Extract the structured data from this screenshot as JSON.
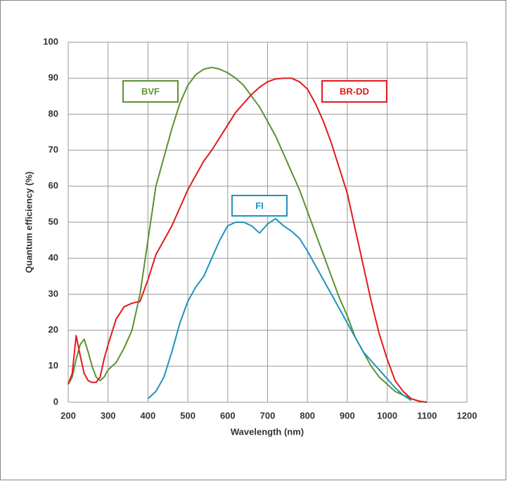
{
  "chart_data": {
    "type": "line",
    "x_label": "Wavelength (nm)",
    "y_label": "Quantum efficiency (%)",
    "x": [
      200,
      210,
      220,
      230,
      240,
      250,
      260,
      270,
      280,
      290,
      300,
      320,
      340,
      360,
      380,
      400,
      420,
      440,
      460,
      480,
      500,
      520,
      540,
      560,
      580,
      600,
      620,
      640,
      660,
      680,
      700,
      720,
      740,
      760,
      780,
      800,
      820,
      840,
      860,
      880,
      900,
      920,
      940,
      960,
      980,
      1000,
      1020,
      1040,
      1060,
      1080,
      1100
    ],
    "series": [
      {
        "name": "BVF",
        "color": "#5b9230",
        "values": [
          5,
          7,
          12,
          16,
          17.5,
          14,
          10,
          7,
          6,
          7,
          9,
          11,
          15,
          20,
          30,
          45,
          60,
          68,
          76,
          83,
          88,
          91,
          92.5,
          93,
          92.5,
          91.5,
          90,
          88,
          85,
          82,
          78,
          74,
          69,
          64,
          59,
          53,
          47,
          41,
          35,
          29,
          24,
          18,
          14,
          10,
          7,
          5,
          3,
          2,
          1,
          0.3,
          0
        ]
      },
      {
        "name": "BR-DD",
        "color": "#e3191c",
        "values": [
          5,
          8,
          18.5,
          13,
          8,
          6,
          5.5,
          5.5,
          7,
          12,
          16,
          23,
          26.5,
          27.5,
          28,
          34,
          41,
          45,
          49,
          54,
          59,
          63,
          67,
          70,
          73.5,
          77,
          80.5,
          83,
          85.5,
          87.5,
          89,
          89.8,
          90,
          90,
          89,
          87,
          83,
          78,
          72,
          65,
          58,
          48,
          38,
          28,
          19,
          12,
          6,
          3,
          1,
          0.3,
          0
        ]
      },
      {
        "name": "FI",
        "color": "#1e93bf",
        "values": [
          null,
          null,
          null,
          null,
          null,
          null,
          null,
          null,
          null,
          null,
          null,
          null,
          null,
          null,
          null,
          1,
          3,
          7,
          14,
          22,
          28,
          32,
          35,
          40,
          45,
          49,
          50,
          50,
          49,
          47,
          49.5,
          51,
          49,
          47.5,
          45.5,
          42,
          38,
          34,
          30,
          26,
          22,
          18,
          14,
          11.5,
          9,
          6.5,
          4,
          2,
          0.5,
          null,
          null
        ]
      }
    ],
    "xlim": [
      200,
      1200
    ],
    "xticks": [
      200,
      300,
      400,
      500,
      600,
      700,
      800,
      900,
      1000,
      1100,
      1200
    ],
    "ylim": [
      0,
      100
    ],
    "yticks": [
      0,
      10,
      20,
      30,
      40,
      50,
      60,
      70,
      80,
      90,
      100
    ],
    "grid": true
  }
}
